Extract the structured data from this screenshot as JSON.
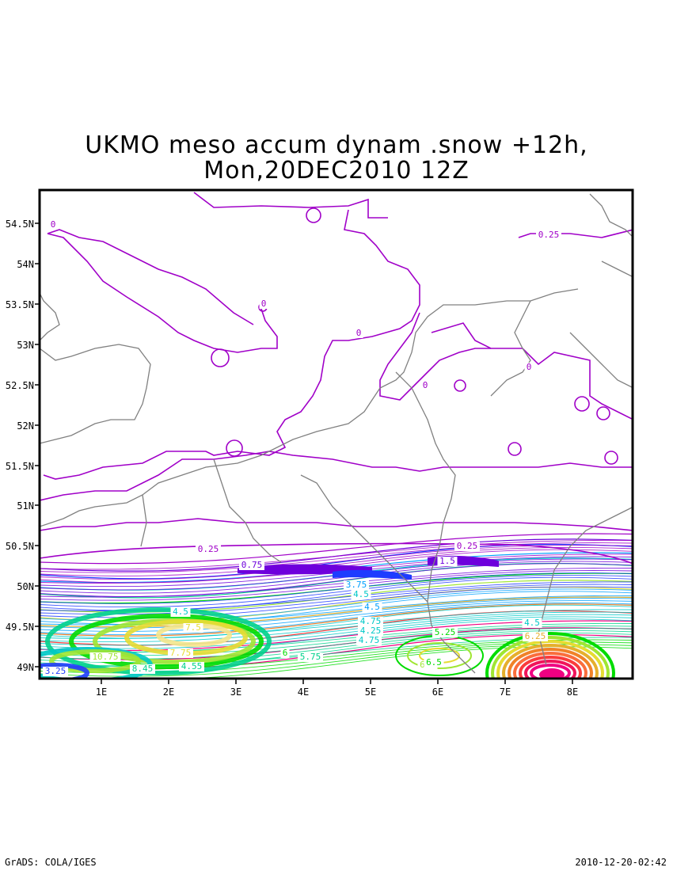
{
  "title_line1": "UKMO meso accum dynam .snow +12h,",
  "title_line2": "Mon,20DEC2010 12Z",
  "footer_left": "GrADS: COLA/IGES",
  "footer_right": "2010-12-20-02:42",
  "lat_ticks": [
    "54.5N",
    "54N",
    "53.5N",
    "53N",
    "52.5N",
    "52N",
    "51.5N",
    "51N",
    "50.5N",
    "50N",
    "49.5N",
    "49N"
  ],
  "lon_ticks": [
    "1E",
    "2E",
    "3E",
    "4E",
    "5E",
    "6E",
    "7E",
    "8E"
  ],
  "contour_labels": [
    "0",
    "0.25",
    "0",
    "0",
    "0",
    "0",
    "0.25",
    "0.75",
    "0.25",
    "1.5",
    "3.75",
    "4.5",
    "4.75",
    "4.5",
    "5.75",
    "4.5",
    "7.5",
    "7.75",
    "10.75",
    "8.45",
    "3.25",
    "4.55",
    "4.25",
    "4.75",
    "5.25",
    "6.5",
    "6.5",
    "4.5",
    "6.25",
    "6"
  ],
  "colors": {
    "coast": "#808080",
    "zero_contour": "#a000c8",
    "palette": [
      "#a000c8",
      "#6e00dc",
      "#1e3cff",
      "#00a0ff",
      "#00c8c8",
      "#00d28c",
      "#00dc00",
      "#a0e632",
      "#e6dc32",
      "#e6af2d",
      "#f08228",
      "#fa3c3c",
      "#f00082"
    ]
  }
}
